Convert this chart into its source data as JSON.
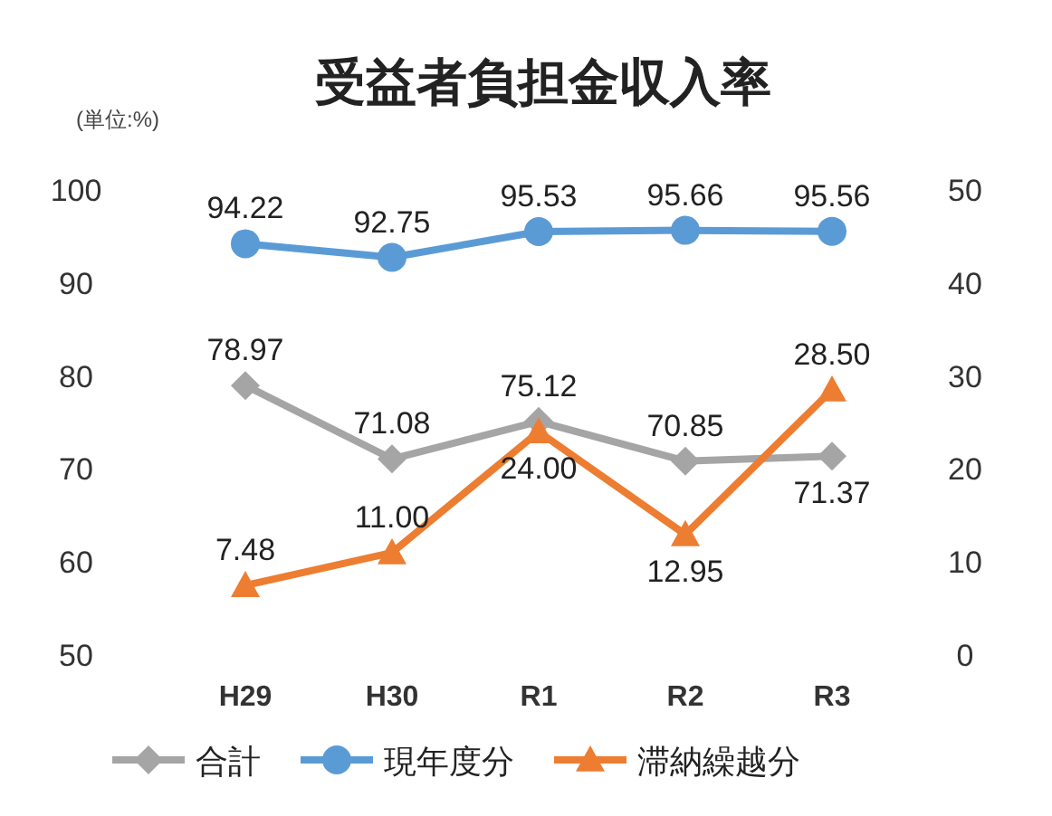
{
  "chart_data": {
    "type": "line",
    "title": "受益者負担金収入率",
    "annotations": [
      "(単位:%)"
    ],
    "categories": [
      "H29",
      "H30",
      "R1",
      "R2",
      "R3"
    ],
    "ylim": [
      50,
      100
    ],
    "yticks": [
      50,
      60,
      70,
      80,
      90,
      100
    ],
    "y2lim": [
      0,
      50
    ],
    "y2ticks": [
      0,
      10,
      20,
      30,
      40,
      50
    ],
    "legend": "bottom",
    "grid": false,
    "series": [
      {
        "name": "合計",
        "color": "#a5a5a5",
        "marker": "diamond",
        "values": [
          78.97,
          71.08,
          75.12,
          70.85,
          71.37
        ],
        "value_labels": [
          "78.97",
          "71.08",
          "75.12",
          "70.85",
          "71.37"
        ]
      },
      {
        "name": "現年度分",
        "color": "#5b9bd5",
        "marker": "circle",
        "values": [
          94.22,
          92.75,
          95.53,
          95.66,
          95.56
        ],
        "value_labels": [
          "94.22",
          "92.75",
          "95.53",
          "95.66",
          "95.56"
        ]
      },
      {
        "name": "滞納繰越分",
        "color": "#ed7d31",
        "marker": "triangle",
        "axis": "y2",
        "values": [
          7.48,
          11.0,
          24.0,
          12.95,
          28.5
        ],
        "value_labels": [
          "7.48",
          "11.00",
          "24.00",
          "12.95",
          "28.50"
        ]
      }
    ]
  }
}
